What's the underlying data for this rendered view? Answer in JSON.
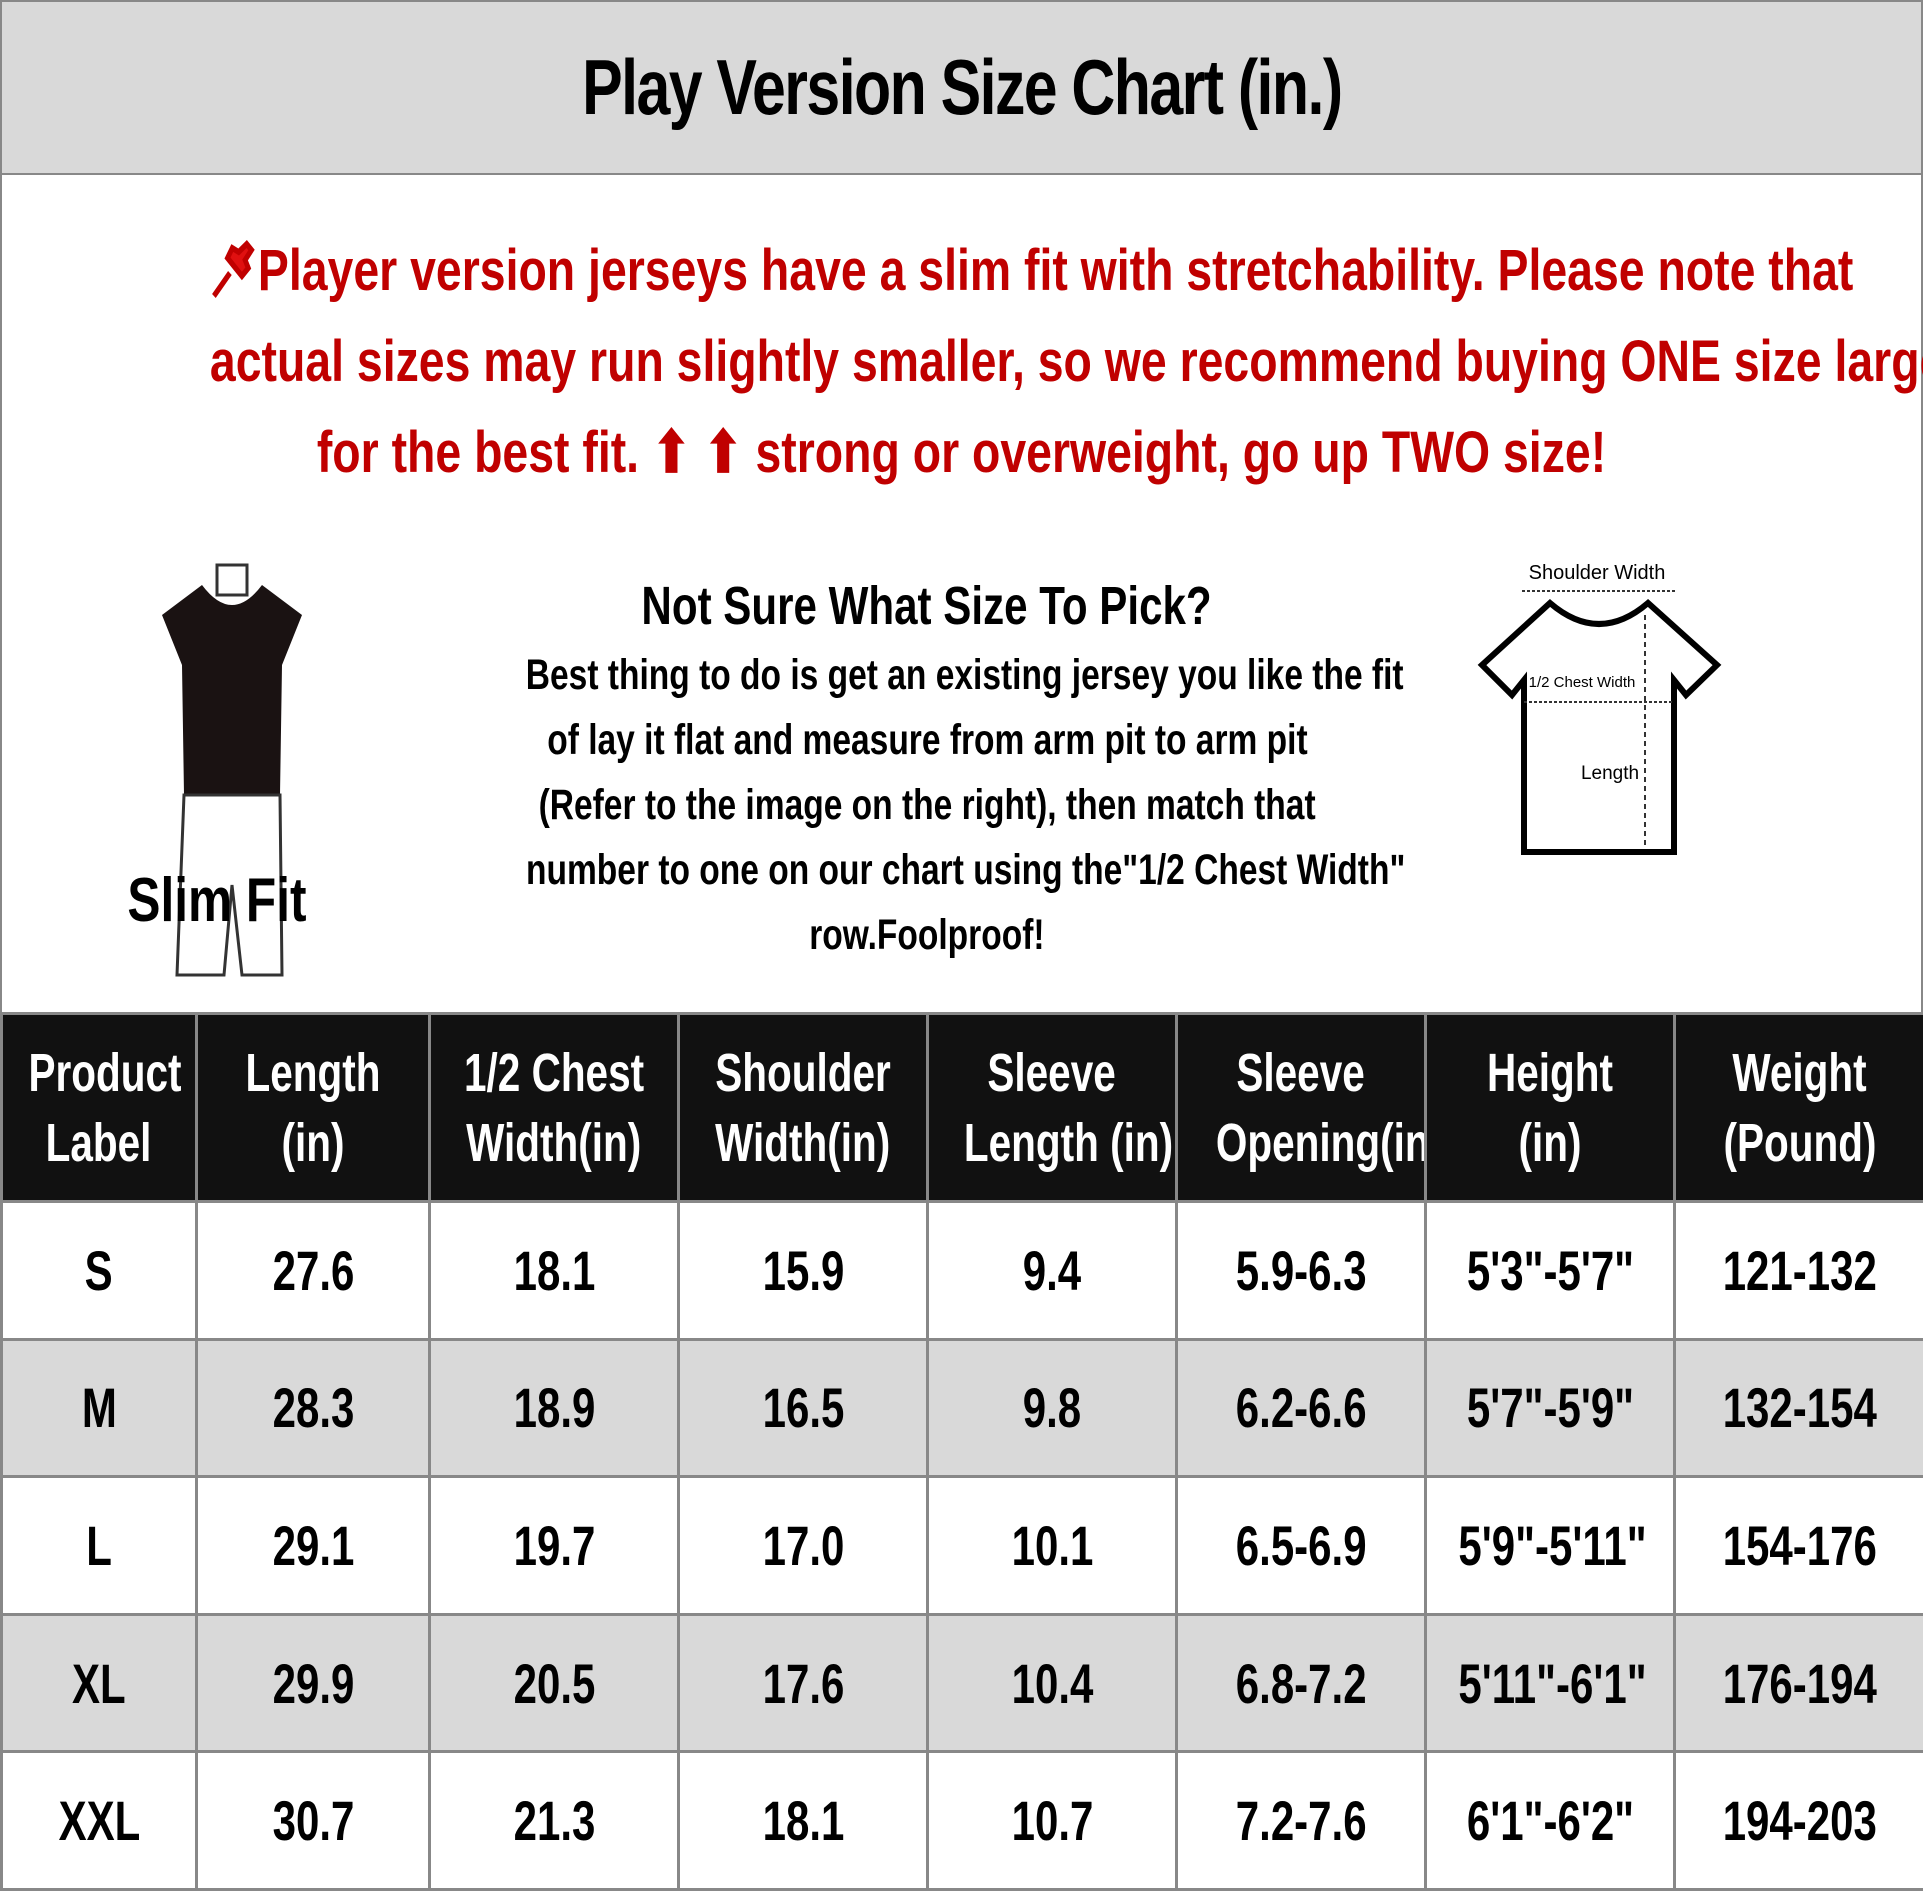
{
  "title": "Play Version Size Chart (in.)",
  "notice": {
    "icon": "pushpin-icon",
    "color": "#c00000",
    "lines": [
      "Player version jerseys have a slim fit with stretchability. Please note that",
      "actual sizes may run slightly smaller, so we recommend buying ONE size larger",
      "for the best fit. ⬆ ⬆ strong or overweight, go up TWO size!"
    ]
  },
  "slim_fit": {
    "label": "Slim Fit"
  },
  "help": {
    "heading": "Not Sure What Size To Pick?",
    "lines": [
      "Best thing to do is get an existing jersey you like the fit",
      "of lay it flat and measure from arm pit to arm pit",
      "(Refer to the image on the right), then match that",
      "number to one on our chart using the\"1/2 Chest Width\"",
      "row.Foolproof!"
    ]
  },
  "diagram": {
    "shoulder": "Shoulder Width",
    "chest": "1/2 Chest Width",
    "length": "Length"
  },
  "table": {
    "headers": [
      [
        "Product",
        "Label"
      ],
      [
        "Length",
        "(in)"
      ],
      [
        "1/2 Chest",
        "Width(in)"
      ],
      [
        "Shoulder",
        "Width(in)"
      ],
      [
        "Sleeve",
        "Length (in)"
      ],
      [
        "Sleeve",
        "Opening(in)"
      ],
      [
        "Height",
        "(in)"
      ],
      [
        "Weight",
        "(Pound)"
      ]
    ],
    "rows": [
      [
        "S",
        "27.6",
        "18.1",
        "15.9",
        "9.4",
        "5.9-6.3",
        "5'3\"-5'7\"",
        "121-132"
      ],
      [
        "M",
        "28.3",
        "18.9",
        "16.5",
        "9.8",
        "6.2-6.6",
        "5'7\"-5'9\"",
        "132-154"
      ],
      [
        "L",
        "29.1",
        "19.7",
        "17.0",
        "10.1",
        "6.5-6.9",
        "5'9\"-5'11\"",
        "154-176"
      ],
      [
        "XL",
        "29.9",
        "20.5",
        "17.6",
        "10.4",
        "6.8-7.2",
        "5'11\"-6'1\"",
        "176-194"
      ],
      [
        "XXL",
        "30.7",
        "21.3",
        "18.1",
        "10.7",
        "7.2-7.6",
        "6'1\"-6'2\"",
        "194-203"
      ]
    ]
  }
}
